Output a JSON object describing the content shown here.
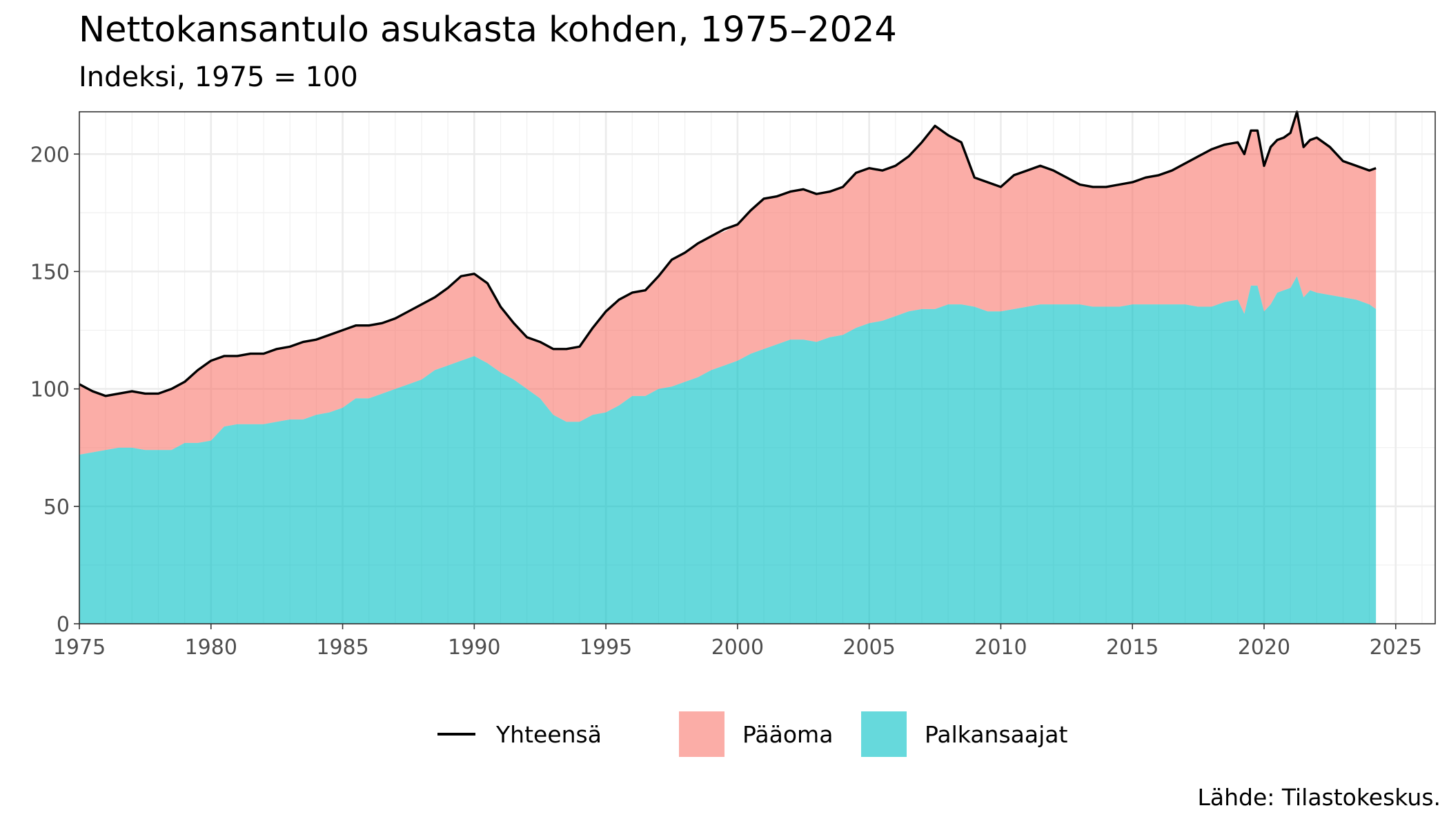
{
  "title": "Nettokansantulo asukasta kohden, 1975–2024",
  "subtitle": "Indeksi, 1975 = 100",
  "caption": "Lähde: Tilastokeskus.",
  "chart_data": {
    "type": "area",
    "stacked": true,
    "title": "Nettokansantulo asukasta kohden, 1975–2024",
    "subtitle": "Indeksi, 1975 = 100",
    "xlabel": "",
    "ylabel": "",
    "xlim": [
      1975,
      2026.5
    ],
    "ylim": [
      0,
      218
    ],
    "x_ticks": [
      1975,
      1980,
      1985,
      1990,
      1995,
      2000,
      2005,
      2010,
      2015,
      2020,
      2025
    ],
    "y_ticks": [
      0,
      50,
      100,
      150,
      200
    ],
    "grid": true,
    "legend_position": "bottom",
    "colors": {
      "Yhteensä": "#000000",
      "Pääoma": "#F8766D",
      "Palkansaajat": "#00BFC4"
    },
    "legend": [
      "Yhteensä",
      "Pääoma",
      "Palkansaajat"
    ],
    "x": [
      1975.0,
      1975.5,
      1976.0,
      1976.5,
      1977.0,
      1977.5,
      1978.0,
      1978.5,
      1979.0,
      1979.5,
      1980.0,
      1980.5,
      1981.0,
      1981.5,
      1982.0,
      1982.5,
      1983.0,
      1983.5,
      1984.0,
      1984.5,
      1985.0,
      1985.5,
      1986.0,
      1986.5,
      1987.0,
      1987.5,
      1988.0,
      1988.5,
      1989.0,
      1989.5,
      1990.0,
      1990.5,
      1991.0,
      1991.5,
      1992.0,
      1992.5,
      1993.0,
      1993.5,
      1994.0,
      1994.5,
      1995.0,
      1995.5,
      1996.0,
      1996.5,
      1997.0,
      1997.5,
      1998.0,
      1998.5,
      1999.0,
      1999.5,
      2000.0,
      2000.5,
      2001.0,
      2001.5,
      2002.0,
      2002.5,
      2003.0,
      2003.5,
      2004.0,
      2004.5,
      2005.0,
      2005.5,
      2006.0,
      2006.5,
      2007.0,
      2007.5,
      2008.0,
      2008.5,
      2009.0,
      2009.5,
      2010.0,
      2010.5,
      2011.0,
      2011.5,
      2012.0,
      2012.5,
      2013.0,
      2013.5,
      2014.0,
      2014.5,
      2015.0,
      2015.5,
      2016.0,
      2016.5,
      2017.0,
      2017.5,
      2018.0,
      2018.5,
      2019.0,
      2019.25,
      2019.5,
      2019.75,
      2020.0,
      2020.25,
      2020.5,
      2020.75,
      2021.0,
      2021.25,
      2021.5,
      2021.75,
      2022.0,
      2022.5,
      2023.0,
      2023.5,
      2024.0,
      2024.25
    ],
    "series": [
      {
        "name": "Yhteensä",
        "type": "line",
        "values": [
          102,
          99,
          97,
          98,
          99,
          98,
          98,
          100,
          103,
          108,
          112,
          114,
          114,
          115,
          115,
          117,
          118,
          120,
          121,
          123,
          125,
          127,
          127,
          128,
          130,
          133,
          136,
          139,
          143,
          148,
          149,
          145,
          135,
          128,
          122,
          120,
          117,
          117,
          118,
          126,
          133,
          138,
          141,
          142,
          148,
          155,
          158,
          162,
          165,
          168,
          170,
          176,
          181,
          182,
          184,
          185,
          183,
          184,
          186,
          192,
          194,
          193,
          195,
          199,
          205,
          212,
          208,
          205,
          190,
          188,
          186,
          191,
          193,
          195,
          193,
          190,
          187,
          186,
          186,
          187,
          188,
          190,
          191,
          193,
          196,
          199,
          202,
          204,
          205,
          200,
          210,
          210,
          195,
          203,
          206,
          207,
          209,
          218,
          203,
          206,
          207,
          203,
          197,
          195,
          193,
          194
        ]
      },
      {
        "name": "Pääoma",
        "type": "area",
        "values": [
          30,
          26,
          23,
          23,
          24,
          24,
          24,
          26,
          26,
          31,
          34,
          30,
          29,
          30,
          30,
          31,
          31,
          33,
          32,
          33,
          33,
          31,
          31,
          30,
          30,
          31,
          32,
          31,
          33,
          36,
          35,
          34,
          28,
          24,
          22,
          24,
          28,
          31,
          32,
          37,
          43,
          45,
          44,
          45,
          48,
          54,
          55,
          57,
          57,
          57,
          58,
          61,
          64,
          63,
          63,
          64,
          63,
          62,
          63,
          66,
          66,
          64,
          64,
          66,
          71,
          78,
          72,
          69,
          55,
          55,
          53,
          57,
          58,
          59,
          57,
          54,
          51,
          51,
          51,
          52,
          52,
          54,
          55,
          57,
          60,
          64,
          67,
          67,
          67,
          68,
          66,
          66,
          62,
          67,
          65,
          65,
          66,
          70,
          64,
          64,
          66,
          63,
          58,
          57,
          57,
          60
        ]
      },
      {
        "name": "Palkansaajat",
        "type": "area",
        "values": [
          72,
          73,
          74,
          75,
          75,
          74,
          74,
          74,
          77,
          77,
          78,
          84,
          85,
          85,
          85,
          86,
          87,
          87,
          89,
          90,
          92,
          96,
          96,
          98,
          100,
          102,
          104,
          108,
          110,
          112,
          114,
          111,
          107,
          104,
          100,
          96,
          89,
          86,
          86,
          89,
          90,
          93,
          97,
          97,
          100,
          101,
          103,
          105,
          108,
          110,
          112,
          115,
          117,
          119,
          121,
          121,
          120,
          122,
          123,
          126,
          128,
          129,
          131,
          133,
          134,
          134,
          136,
          136,
          135,
          133,
          133,
          134,
          135,
          136,
          136,
          136,
          136,
          135,
          135,
          135,
          136,
          136,
          136,
          136,
          136,
          135,
          135,
          137,
          138,
          132,
          144,
          144,
          133,
          136,
          141,
          142,
          143,
          148,
          139,
          142,
          141,
          140,
          139,
          138,
          136,
          134
        ]
      }
    ]
  }
}
